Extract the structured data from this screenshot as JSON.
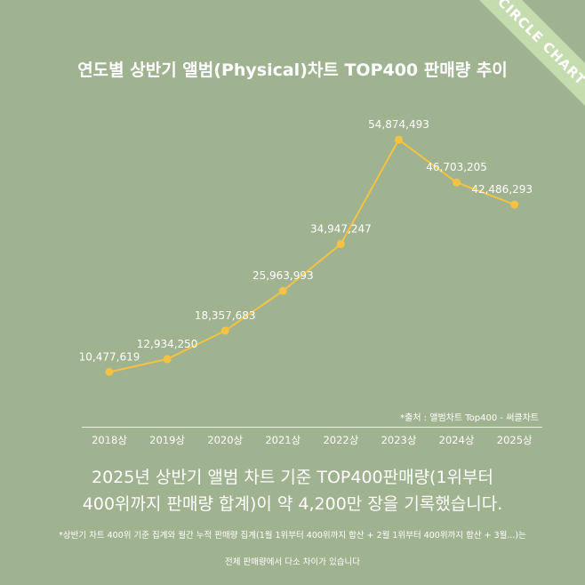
{
  "banner": {
    "label": "CIRCLE CHART",
    "color": "#c4dcae"
  },
  "chart_data": {
    "type": "line",
    "title": "연도별 상반기 앨범(Physical)차트 TOP400 판매량 추이",
    "categories": [
      "2018상",
      "2019상",
      "2020상",
      "2021상",
      "2022상",
      "2023상",
      "2024상",
      "2025상"
    ],
    "series": [
      {
        "values": [
          10477619,
          12934250,
          18357683,
          25963993,
          34947247,
          54874493,
          46703205,
          42486293
        ]
      }
    ],
    "data_labels": [
      "10,477,619",
      "12,934,250",
      "18,357,683",
      "25,963,993",
      "34,947,247",
      "54,874,493",
      "46,703,205",
      "42,486,293"
    ],
    "ylim": [
      0,
      60000000
    ],
    "grid": false,
    "line_color": "#f5c242",
    "background_color": "#a0b391",
    "source": "*출처 : 앨범차트 Top400 - 써클차트"
  },
  "footer": {
    "headline_line1": "2025년 상반기 앨범 차트 기준 TOP400판매량(1위부터",
    "headline_line2": "400위까지 판매량 합계)이 약 4,200만 장을 기록했습니다.",
    "note_line1": "*상반기 차트 400위 기준 집계와 월간 누적 판매량 집계(1월 1위부터 400위까지 합산 + 2월 1위부터 400위까지 합산 + 3월...)는",
    "note_line2": "전체 판매량에서 다소 차이가 있습니다"
  }
}
